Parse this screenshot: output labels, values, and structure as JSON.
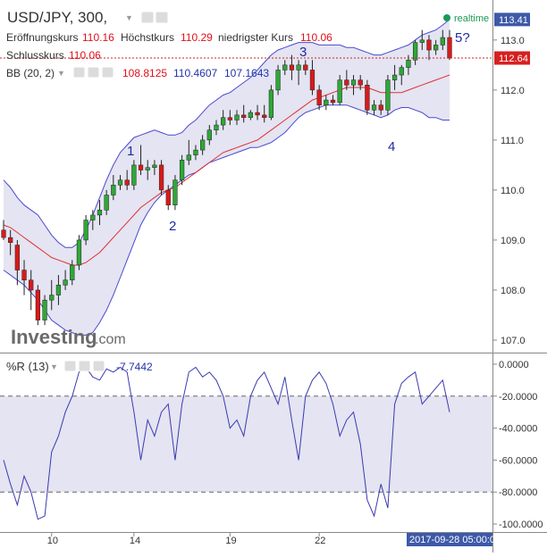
{
  "header": {
    "symbol": "USD/JPY, 300,",
    "status_label": "realtime",
    "status_color": "#1a9a55",
    "ohlc": [
      {
        "label": "Eröffnungskurs",
        "value": "110.16"
      },
      {
        "label": "Höchstkurs",
        "value": "110.29"
      },
      {
        "label": "niedrigster Kurs",
        "value": "110.06"
      },
      {
        "label": "Schlusskurs",
        "value": "110.06"
      }
    ],
    "bb": {
      "label": "BB (20, 2)",
      "upper": "108.8125",
      "middle": "110.4607",
      "lower": "107.1643"
    }
  },
  "price_tags": {
    "upper_band": "113.41",
    "last": "112.64"
  },
  "price_axis_ticks": [
    "113.0",
    "112.0",
    "111.0",
    "110.0",
    "109.0",
    "108.0",
    "107.0"
  ],
  "wave_labels": [
    "1",
    "2",
    "3",
    "4",
    "5?"
  ],
  "watermark": {
    "brand": "Investing",
    "suffix": ".com"
  },
  "willr": {
    "title": "%R (13)",
    "value": "-7.7442",
    "ticks": [
      "0.0000",
      "-20.0000",
      "-40.0000",
      "-60.0000",
      "-80.0000",
      "-100.0000"
    ]
  },
  "time_axis": {
    "labels": [
      "10",
      "14",
      "19",
      "22"
    ],
    "cursor_label": "2017-09-28 05:00:00"
  },
  "colors": {
    "up": "#2ea836",
    "down": "#d91a1a",
    "band_fill": "#e4e4f2",
    "band_line": "#4a4ad0",
    "mid_line": "#e03030",
    "willr_line": "#3a3ab0",
    "tag_blue": "#3d59a8",
    "tag_red": "#d62020"
  },
  "chart_data": [
    {
      "type": "candlestick",
      "title": "USD/JPY, 300,",
      "ylim": [
        106.75,
        113.8
      ],
      "grid": false,
      "candles": [
        {
          "o": 109.2,
          "h": 109.4,
          "l": 109.0,
          "c": 109.05
        },
        {
          "o": 109.05,
          "h": 109.2,
          "l": 108.7,
          "c": 108.95
        },
        {
          "o": 108.9,
          "h": 109.0,
          "l": 108.1,
          "c": 108.4
        },
        {
          "o": 108.4,
          "h": 108.6,
          "l": 107.9,
          "c": 108.2
        },
        {
          "o": 108.2,
          "h": 108.4,
          "l": 107.6,
          "c": 108.0
        },
        {
          "o": 108.0,
          "h": 108.1,
          "l": 107.3,
          "c": 107.4
        },
        {
          "o": 107.4,
          "h": 107.9,
          "l": 107.3,
          "c": 107.8
        },
        {
          "o": 107.8,
          "h": 108.2,
          "l": 107.6,
          "c": 107.9
        },
        {
          "o": 107.9,
          "h": 108.3,
          "l": 107.7,
          "c": 108.1
        },
        {
          "o": 108.1,
          "h": 108.4,
          "l": 108.0,
          "c": 108.2
        },
        {
          "o": 108.2,
          "h": 108.6,
          "l": 108.1,
          "c": 108.5
        },
        {
          "o": 108.5,
          "h": 109.1,
          "l": 108.4,
          "c": 109.0
        },
        {
          "o": 109.0,
          "h": 109.5,
          "l": 108.9,
          "c": 109.4
        },
        {
          "o": 109.4,
          "h": 109.6,
          "l": 109.2,
          "c": 109.5
        },
        {
          "o": 109.5,
          "h": 109.8,
          "l": 109.3,
          "c": 109.6
        },
        {
          "o": 109.6,
          "h": 110.0,
          "l": 109.5,
          "c": 109.9
        },
        {
          "o": 109.9,
          "h": 110.3,
          "l": 109.8,
          "c": 110.1
        },
        {
          "o": 110.1,
          "h": 110.3,
          "l": 110.0,
          "c": 110.2
        },
        {
          "o": 110.2,
          "h": 110.4,
          "l": 110.0,
          "c": 110.1
        },
        {
          "o": 110.1,
          "h": 110.6,
          "l": 110.0,
          "c": 110.5
        },
        {
          "o": 110.5,
          "h": 110.9,
          "l": 110.3,
          "c": 110.4
        },
        {
          "o": 110.4,
          "h": 110.6,
          "l": 110.2,
          "c": 110.45
        },
        {
          "o": 110.45,
          "h": 110.6,
          "l": 110.3,
          "c": 110.5
        },
        {
          "o": 110.5,
          "h": 110.6,
          "l": 109.9,
          "c": 110.0
        },
        {
          "o": 110.0,
          "h": 110.1,
          "l": 109.6,
          "c": 109.7
        },
        {
          "o": 109.7,
          "h": 110.3,
          "l": 109.6,
          "c": 110.2
        },
        {
          "o": 110.2,
          "h": 110.7,
          "l": 110.1,
          "c": 110.6
        },
        {
          "o": 110.6,
          "h": 111.0,
          "l": 110.5,
          "c": 110.7
        },
        {
          "o": 110.7,
          "h": 110.9,
          "l": 110.6,
          "c": 110.8
        },
        {
          "o": 110.8,
          "h": 111.1,
          "l": 110.7,
          "c": 111.0
        },
        {
          "o": 111.0,
          "h": 111.3,
          "l": 110.9,
          "c": 111.2
        },
        {
          "o": 111.2,
          "h": 111.4,
          "l": 111.1,
          "c": 111.3
        },
        {
          "o": 111.3,
          "h": 111.6,
          "l": 111.2,
          "c": 111.45
        },
        {
          "o": 111.45,
          "h": 111.6,
          "l": 111.3,
          "c": 111.4
        },
        {
          "o": 111.4,
          "h": 111.6,
          "l": 111.3,
          "c": 111.5
        },
        {
          "o": 111.5,
          "h": 111.7,
          "l": 111.35,
          "c": 111.45
        },
        {
          "o": 111.45,
          "h": 111.6,
          "l": 111.4,
          "c": 111.55
        },
        {
          "o": 111.55,
          "h": 111.7,
          "l": 111.4,
          "c": 111.5
        },
        {
          "o": 111.5,
          "h": 111.7,
          "l": 111.35,
          "c": 111.45
        },
        {
          "o": 111.45,
          "h": 112.1,
          "l": 111.4,
          "c": 112.0
        },
        {
          "o": 112.0,
          "h": 112.5,
          "l": 111.9,
          "c": 112.4
        },
        {
          "o": 112.4,
          "h": 112.6,
          "l": 112.3,
          "c": 112.5
        },
        {
          "o": 112.5,
          "h": 112.7,
          "l": 112.2,
          "c": 112.4
        },
        {
          "o": 112.4,
          "h": 112.6,
          "l": 112.1,
          "c": 112.5
        },
        {
          "o": 112.5,
          "h": 112.6,
          "l": 112.3,
          "c": 112.4
        },
        {
          "o": 112.4,
          "h": 112.6,
          "l": 111.9,
          "c": 112.0
        },
        {
          "o": 112.0,
          "h": 112.1,
          "l": 111.6,
          "c": 111.7
        },
        {
          "o": 111.7,
          "h": 111.9,
          "l": 111.6,
          "c": 111.8
        },
        {
          "o": 111.8,
          "h": 111.9,
          "l": 111.7,
          "c": 111.75
        },
        {
          "o": 111.75,
          "h": 112.3,
          "l": 111.7,
          "c": 112.2
        },
        {
          "o": 112.2,
          "h": 112.4,
          "l": 112.0,
          "c": 112.1
        },
        {
          "o": 112.1,
          "h": 112.3,
          "l": 111.9,
          "c": 112.2
        },
        {
          "o": 112.2,
          "h": 112.3,
          "l": 112.0,
          "c": 112.1
        },
        {
          "o": 112.1,
          "h": 112.2,
          "l": 111.5,
          "c": 111.6
        },
        {
          "o": 111.6,
          "h": 111.8,
          "l": 111.5,
          "c": 111.7
        },
        {
          "o": 111.7,
          "h": 111.8,
          "l": 111.5,
          "c": 111.6
        },
        {
          "o": 111.6,
          "h": 112.3,
          "l": 111.5,
          "c": 112.2
        },
        {
          "o": 112.2,
          "h": 112.5,
          "l": 112.0,
          "c": 112.3
        },
        {
          "o": 112.3,
          "h": 112.5,
          "l": 112.1,
          "c": 112.45
        },
        {
          "o": 112.45,
          "h": 112.7,
          "l": 112.3,
          "c": 112.6
        },
        {
          "o": 112.6,
          "h": 113.0,
          "l": 112.5,
          "c": 112.95
        },
        {
          "o": 112.95,
          "h": 113.2,
          "l": 112.8,
          "c": 113.0
        },
        {
          "o": 113.0,
          "h": 113.1,
          "l": 112.6,
          "c": 112.8
        },
        {
          "o": 112.8,
          "h": 113.0,
          "l": 112.7,
          "c": 112.9
        },
        {
          "o": 112.9,
          "h": 113.2,
          "l": 112.8,
          "c": 113.05
        },
        {
          "o": 113.05,
          "h": 113.2,
          "l": 112.6,
          "c": 112.64
        }
      ],
      "bb_upper": [
        110.2,
        110.05,
        109.85,
        109.7,
        109.6,
        109.5,
        109.3,
        109.1,
        108.95,
        108.85,
        108.85,
        108.95,
        109.2,
        109.5,
        109.85,
        110.2,
        110.5,
        110.75,
        110.9,
        111.05,
        111.1,
        111.15,
        111.2,
        111.15,
        111.1,
        111.1,
        111.15,
        111.3,
        111.4,
        111.55,
        111.7,
        111.8,
        111.9,
        111.95,
        112.05,
        112.15,
        112.25,
        112.4,
        112.55,
        112.7,
        112.8,
        112.85,
        112.9,
        112.95,
        112.95,
        112.95,
        112.9,
        112.9,
        112.9,
        112.9,
        112.85,
        112.85,
        112.8,
        112.75,
        112.7,
        112.7,
        112.75,
        112.8,
        112.85,
        112.9,
        113.0,
        113.1,
        113.15,
        113.2,
        113.3,
        113.41
      ],
      "bb_middle": [
        109.3,
        109.25,
        109.15,
        109.05,
        108.95,
        108.85,
        108.75,
        108.65,
        108.6,
        108.55,
        108.5,
        108.5,
        108.55,
        108.65,
        108.75,
        108.9,
        109.05,
        109.2,
        109.35,
        109.5,
        109.65,
        109.75,
        109.85,
        109.95,
        110.0,
        110.05,
        110.15,
        110.25,
        110.35,
        110.45,
        110.55,
        110.65,
        110.75,
        110.8,
        110.85,
        110.9,
        110.95,
        111.0,
        111.1,
        111.2,
        111.3,
        111.4,
        111.5,
        111.6,
        111.7,
        111.8,
        111.85,
        111.9,
        111.95,
        112.0,
        112.05,
        112.05,
        112.05,
        112.05,
        112.0,
        111.95,
        111.95,
        111.95,
        111.95,
        112.0,
        112.05,
        112.1,
        112.15,
        112.2,
        112.25,
        112.3
      ],
      "bb_lower": [
        108.4,
        108.3,
        108.2,
        108.1,
        107.95,
        107.8,
        107.6,
        107.4,
        107.3,
        107.2,
        107.15,
        107.1,
        107.1,
        107.15,
        107.35,
        107.6,
        107.9,
        108.25,
        108.6,
        108.95,
        109.3,
        109.55,
        109.75,
        109.9,
        110.0,
        110.1,
        110.2,
        110.3,
        110.35,
        110.45,
        110.55,
        110.6,
        110.65,
        110.7,
        110.75,
        110.8,
        110.85,
        110.85,
        110.9,
        110.95,
        111.05,
        111.15,
        111.3,
        111.45,
        111.55,
        111.6,
        111.65,
        111.7,
        111.7,
        111.7,
        111.7,
        111.65,
        111.6,
        111.55,
        111.5,
        111.45,
        111.5,
        111.6,
        111.65,
        111.65,
        111.6,
        111.55,
        111.45,
        111.45,
        111.4,
        111.4
      ]
    },
    {
      "type": "line",
      "title": "%R (13)",
      "ylim": [
        -105,
        5
      ],
      "reference_lines": [
        -20,
        -80
      ],
      "series": [
        {
          "values": [
            -60,
            -75,
            -88,
            -70,
            -80,
            -97,
            -95,
            -55,
            -45,
            -30,
            -20,
            -5,
            -2,
            -8,
            -10,
            -3,
            -5,
            -2,
            -5,
            -30,
            -60,
            -35,
            -45,
            -30,
            -25,
            -60,
            -25,
            -5,
            -2,
            -8,
            -5,
            -10,
            -20,
            -40,
            -35,
            -45,
            -20,
            -10,
            -5,
            -15,
            -25,
            -8,
            -35,
            -60,
            -20,
            -10,
            -5,
            -12,
            -25,
            -45,
            -35,
            -30,
            -50,
            -85,
            -95,
            -75,
            -90,
            -25,
            -12,
            -8,
            -5,
            -25,
            -20,
            -15,
            -10,
            -30
          ]
        }
      ]
    }
  ]
}
